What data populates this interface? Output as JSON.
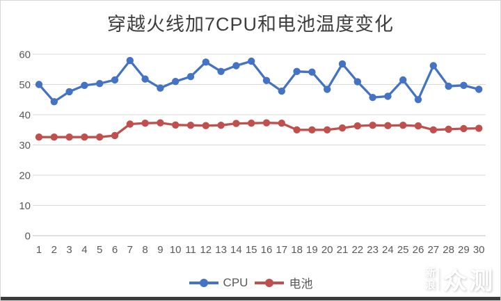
{
  "title": "穿越火线加7CPU和电池温度变化",
  "watermark": {
    "line1": "新",
    "line2": "浪",
    "big": "众测"
  },
  "colors": {
    "cpu_series": "#4472C4",
    "battery_series": "#C0504D",
    "gridline": "#D9D9D9",
    "axis_line": "#BFBFBF",
    "tick_label": "#595959",
    "title_text": "#3E3E3E",
    "bottom_bar": "#3B3B3B"
  },
  "chart_data": {
    "type": "line",
    "title": "穿越火线加7CPU和电池温度变化",
    "xlabel": "",
    "ylabel": "",
    "x": [
      1,
      2,
      3,
      4,
      5,
      6,
      7,
      8,
      9,
      10,
      11,
      12,
      13,
      14,
      15,
      16,
      17,
      18,
      19,
      20,
      21,
      22,
      23,
      24,
      25,
      26,
      27,
      28,
      29,
      30
    ],
    "series": [
      {
        "name": "CPU",
        "color": "#4472C4",
        "values": [
          50,
          44.3,
          47.6,
          49.7,
          50.3,
          51.5,
          57.9,
          51.8,
          48.8,
          51,
          52.6,
          57.4,
          54.3,
          56.2,
          57.7,
          51.3,
          47.8,
          54.3,
          54.1,
          48.4,
          56.8,
          50.9,
          45.7,
          46.1,
          51.5,
          45,
          56.2,
          49.4,
          49.7,
          48.4
        ]
      },
      {
        "name": "电池",
        "color": "#C0504D",
        "values": [
          32.6,
          32.6,
          32.6,
          32.6,
          32.6,
          33.1,
          36.9,
          37.2,
          37.3,
          36.6,
          36.5,
          36.4,
          36.5,
          37.1,
          37.2,
          37.3,
          37.2,
          35,
          35,
          35,
          35.6,
          36.3,
          36.5,
          36.4,
          36.5,
          36.3,
          35,
          35.2,
          35.4,
          35.5
        ]
      }
    ],
    "ylim": [
      0,
      60
    ],
    "yticks": [
      0,
      10,
      20,
      30,
      40,
      50,
      60
    ],
    "grid": true,
    "legend_position": "bottom"
  }
}
